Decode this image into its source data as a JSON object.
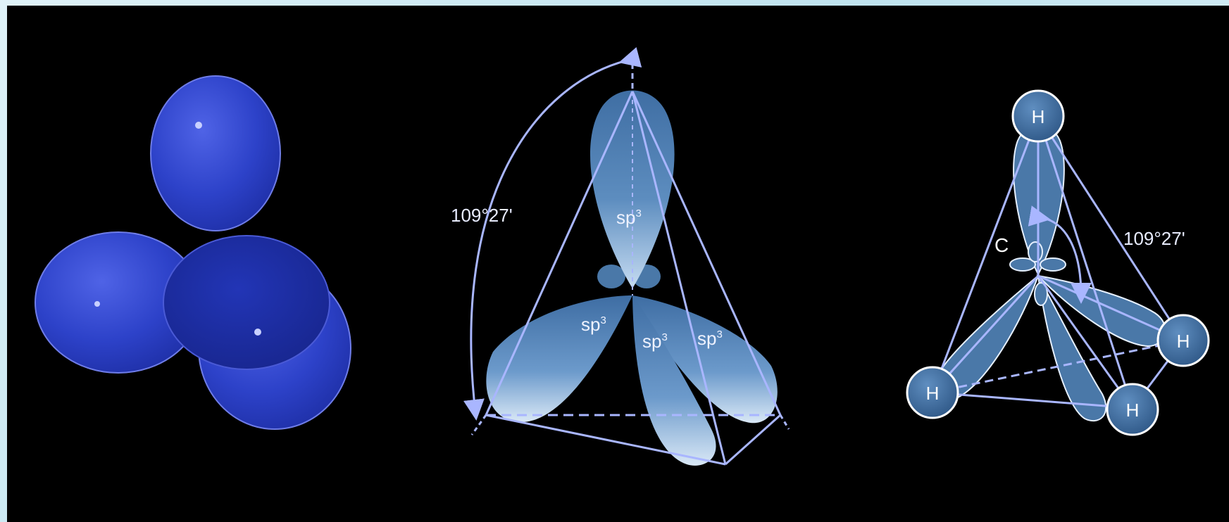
{
  "middle": {
    "angle_label": "109°27'",
    "orbital_label": "sp",
    "orbital_sup": "3"
  },
  "right": {
    "angle_label": "109°27'",
    "carbon_label": "C",
    "hydrogen_label": "H"
  },
  "colors": {
    "background": "#000000",
    "frame": "#cfe9f2",
    "lobe_blue": "#2a3fc8",
    "lobe_steel": "#4a78a8",
    "line": "#a9b6ff"
  }
}
